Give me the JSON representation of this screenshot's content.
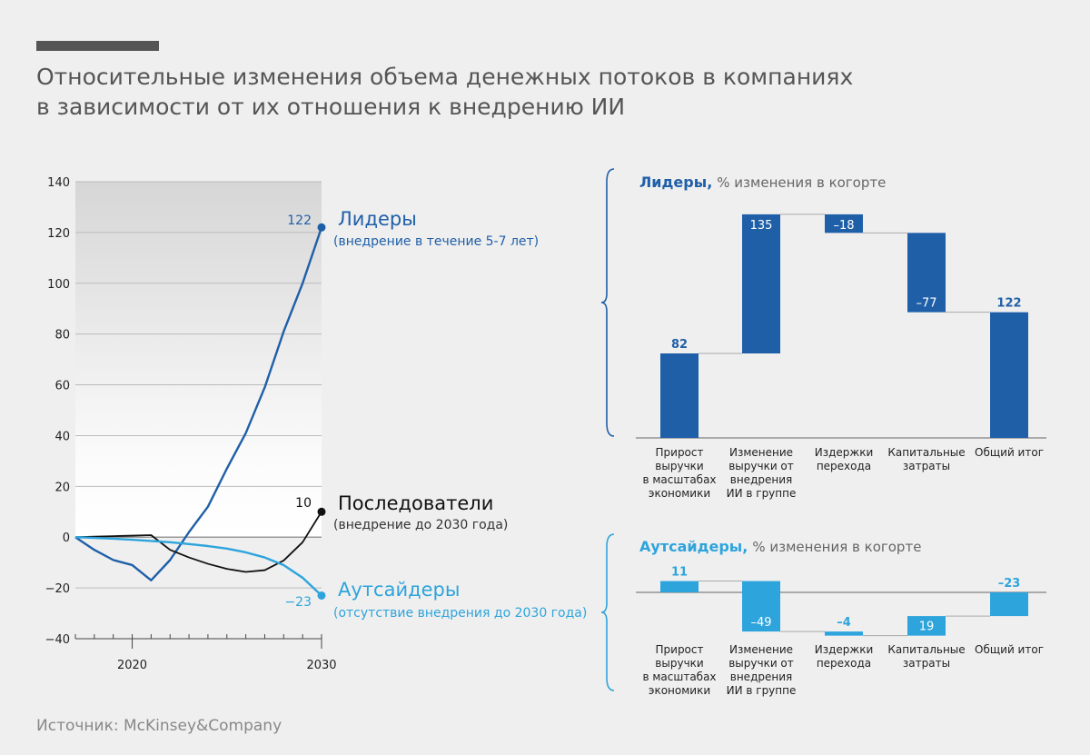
{
  "title_lines": [
    "Относительные изменения объема денежных потоков в компаниях",
    "в зависимости от их отношения к внедрению ИИ"
  ],
  "source": "Источник: McKinsey&Company",
  "colors": {
    "leaders": "#1f5fa8",
    "followers": "#111111",
    "outsiders": "#2ea4dc",
    "text": "#555555",
    "background": "#efefef"
  },
  "chart_data": [
    {
      "type": "line",
      "x": [
        2017,
        2018,
        2019,
        2020,
        2021,
        2022,
        2023,
        2024,
        2025,
        2026,
        2027,
        2028,
        2029,
        2030
      ],
      "xticks_labeled": [
        "2020",
        "2030"
      ],
      "xlim": [
        2017,
        2030
      ],
      "ylim": [
        -40,
        140
      ],
      "yticks": [
        "140",
        "120",
        "100",
        "80",
        "60",
        "40",
        "20",
        "0",
        "−20",
        "−40"
      ],
      "grid": true,
      "series": [
        {
          "name": "Лидеры",
          "note": "(внедрение в течение 5-7 лет)",
          "end_label": "122",
          "color": "#1f5fa8",
          "values": [
            0,
            -5,
            -9,
            -11,
            -17,
            -9,
            2,
            12,
            27,
            41,
            59,
            81,
            100,
            122
          ]
        },
        {
          "name": "Последователи",
          "note": "(внедрение до 2030 года)",
          "end_label": "10",
          "color": "#111111",
          "values": [
            0,
            0.2,
            0.4,
            0.6,
            0.8,
            -5,
            -8,
            -10.5,
            -12.5,
            -13.7,
            -13,
            -9.2,
            -2,
            10
          ]
        },
        {
          "name": "Аутсайдеры",
          "note": "(отсутствие внедрения до 2030 года)",
          "end_label": "−23",
          "color": "#2ea4dc",
          "values": [
            0,
            -0.3,
            -0.6,
            -1,
            -1.5,
            -2,
            -2.7,
            -3.5,
            -4.5,
            -6,
            -8,
            -11,
            -16,
            -23
          ]
        }
      ]
    },
    {
      "type": "bar",
      "subtype": "waterfall",
      "title": "Лидеры,",
      "subtitle": "% изменения в когорте",
      "color": "#1f5fa8",
      "categories": [
        [
          "Прирост",
          "выручки",
          "в масштабах",
          "экономики"
        ],
        [
          "Изменение",
          "выручки от",
          "внедрения",
          "ИИ в группе"
        ],
        [
          "Издержки",
          "перехода"
        ],
        [
          "Капитальные",
          "затраты"
        ],
        [
          "Общий итог"
        ]
      ],
      "values": [
        82,
        135,
        -18,
        -77,
        122
      ],
      "labels": [
        "82",
        "135",
        "–18",
        "–77",
        "122"
      ],
      "total_last": true
    },
    {
      "type": "bar",
      "subtype": "waterfall",
      "title": "Аутсайдеры,",
      "subtitle": "% изменения в когорте",
      "color": "#2ea4dc",
      "categories": [
        [
          "Прирост",
          "выручки",
          "в масштабах",
          "экономики"
        ],
        [
          "Изменение",
          "выручки от",
          "внедрения",
          "ИИ в группе"
        ],
        [
          "Издержки",
          "перехода"
        ],
        [
          "Капитальные",
          "затраты"
        ],
        [
          "Общий итог"
        ]
      ],
      "values": [
        11,
        -49,
        -4,
        19,
        -23
      ],
      "labels": [
        "11",
        "–49",
        "–4",
        "19",
        "–23"
      ],
      "total_last": true
    }
  ]
}
